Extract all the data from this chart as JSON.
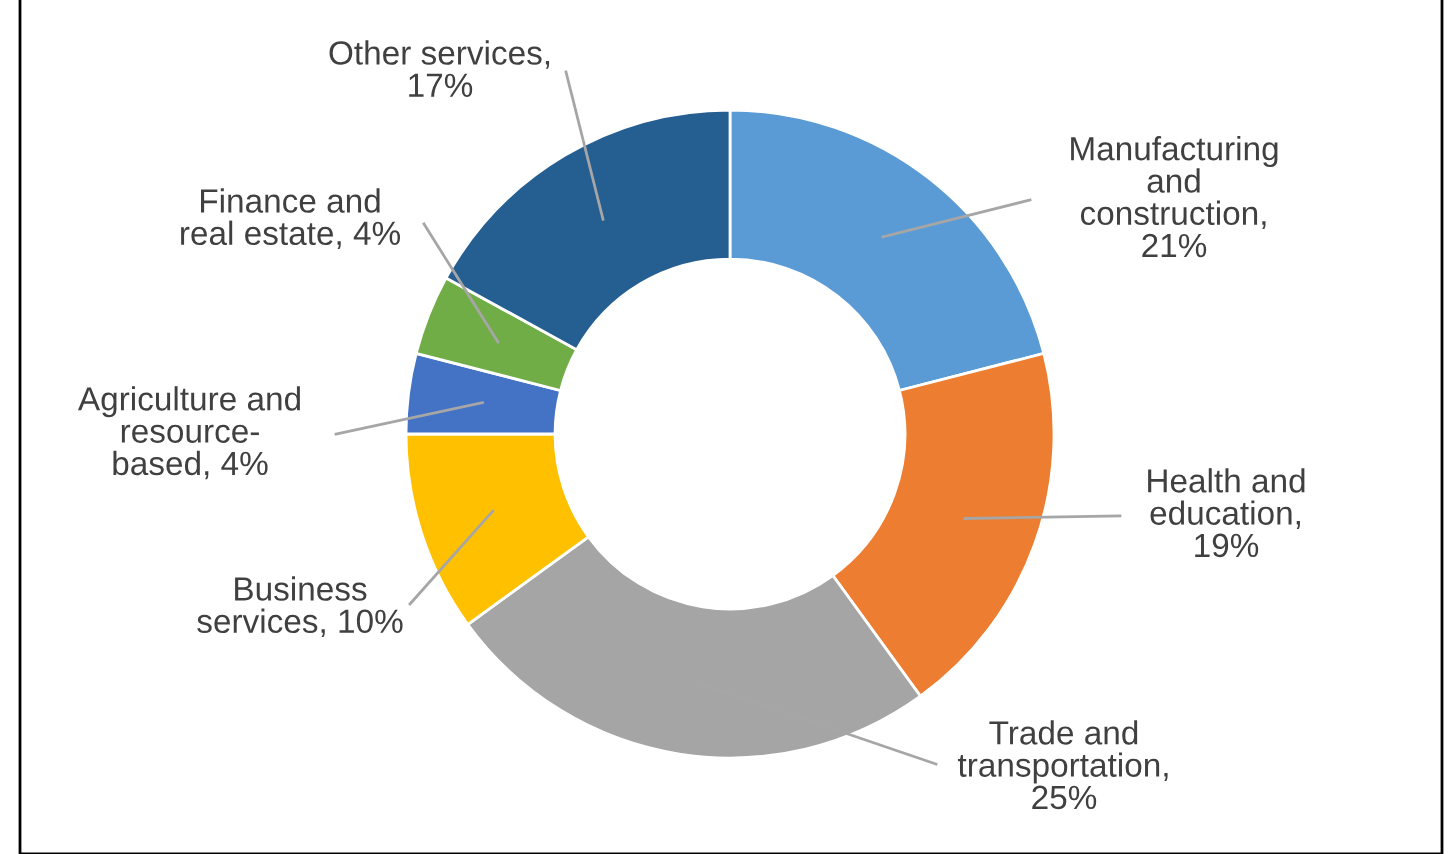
{
  "chart_data": {
    "type": "donut",
    "categories": [
      "Manufacturing\nand\nconstruction,\n21%",
      "Health and\neducation,\n19%",
      "Trade and\ntransportation,\n25%",
      "Business\nservices, 10%",
      "Agriculture and\nresource-\nbased, 4%",
      "Finance and\nreal estate, 4%",
      "Other services,\n17%"
    ],
    "values": [
      21,
      19,
      25,
      10,
      4,
      4,
      17
    ],
    "colors": [
      "#5b9bd5",
      "#ed7d31",
      "#a5a5a5",
      "#ffc000",
      "#4472c4",
      "#70ad47",
      "#255e91"
    ]
  }
}
